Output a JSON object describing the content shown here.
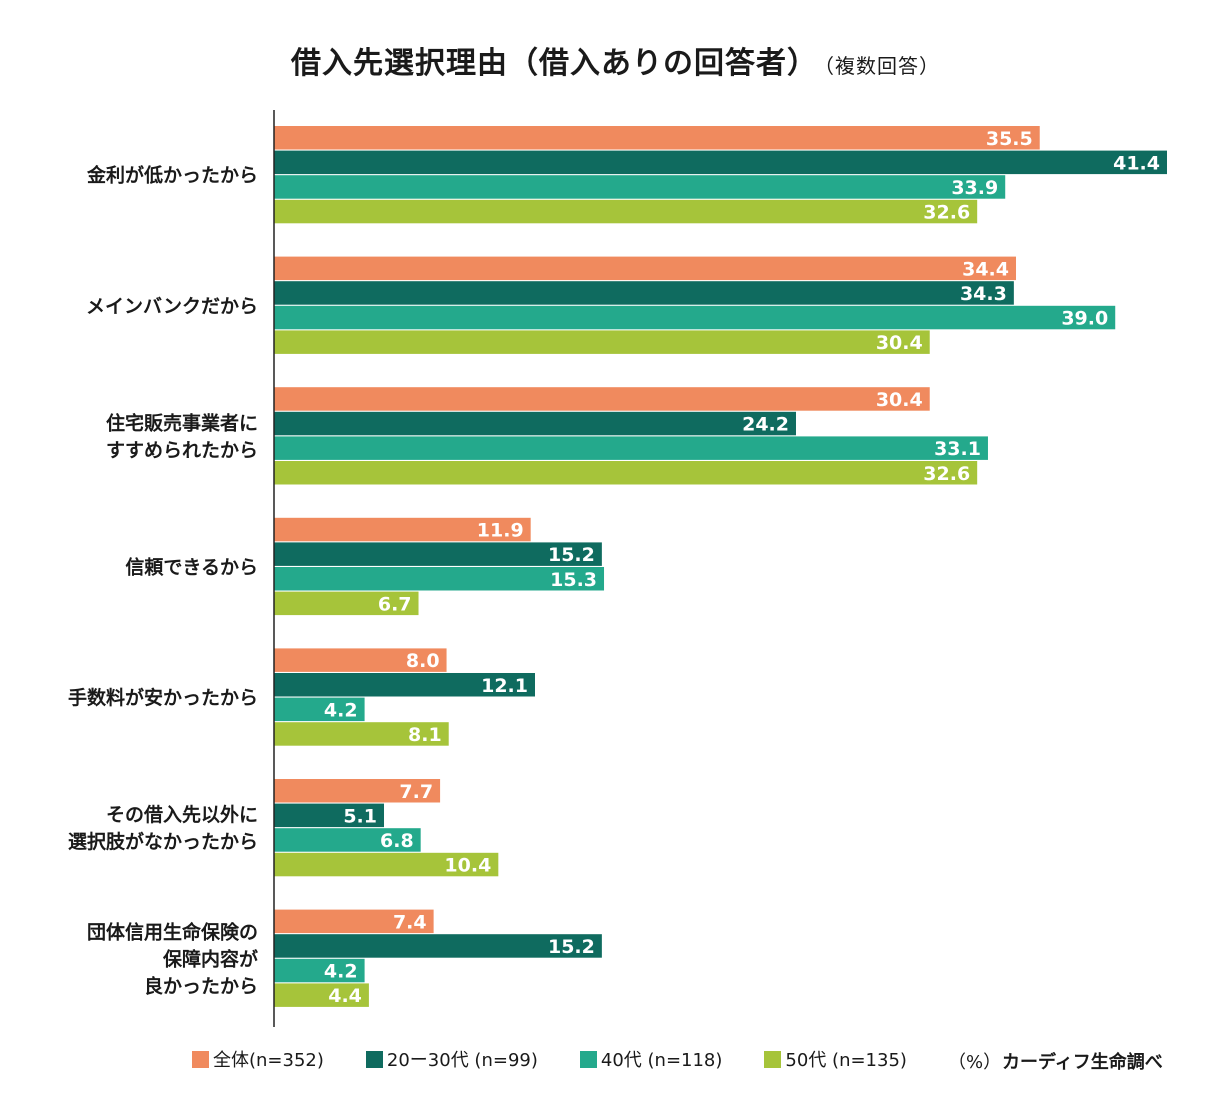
{
  "title": "借入先選択理由（借入ありの回答者）",
  "title_note": "（複数回答）",
  "unit": "（%）",
  "source": "カーディフ生命調べ",
  "colors": {
    "s0": "#f08a5e",
    "s1": "#0f6b5f",
    "s2": "#24a98c",
    "s3": "#a6c43a"
  },
  "chart_data": {
    "type": "bar",
    "orientation": "horizontal",
    "categories": [
      [
        "金利が低かったから"
      ],
      [
        "メインバンクだから"
      ],
      [
        "住宅販売事業者に",
        "すすめられたから"
      ],
      [
        "信頼できるから"
      ],
      [
        "手数料が安かったから"
      ],
      [
        "その借入先以外に",
        "選択肢がなかったから"
      ],
      [
        "団体信用生命保険の",
        "保障内容が",
        "良かったから"
      ]
    ],
    "series": [
      {
        "name": "全体(n=352)",
        "values": [
          35.5,
          34.4,
          30.4,
          11.9,
          8.0,
          7.7,
          7.4
        ]
      },
      {
        "name": "20ー30代 (n=99)",
        "values": [
          41.4,
          34.3,
          24.2,
          15.2,
          12.1,
          5.1,
          15.2
        ]
      },
      {
        "name": "40代 (n=118)",
        "values": [
          33.9,
          39.0,
          33.1,
          15.3,
          4.2,
          6.8,
          4.2
        ]
      },
      {
        "name": "50代 (n=135)",
        "values": [
          32.6,
          30.4,
          32.6,
          6.7,
          8.1,
          10.4,
          4.4
        ]
      }
    ],
    "xlim": [
      0,
      45
    ],
    "legend_position": "bottom",
    "grid": false,
    "data_labels": true
  }
}
